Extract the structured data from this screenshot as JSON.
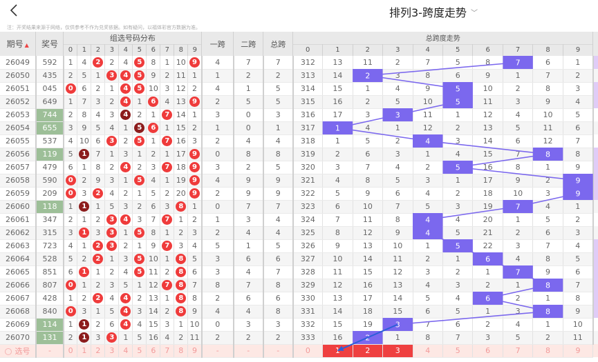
{
  "header": {
    "back_icon": "chevron-left-icon",
    "title": "排列3-跨度走势",
    "title_dropdown_icon": "chevron-down-icon",
    "note": "注：开奖结果来源于网络，仅供参考不作为兑奖依据。如有疑问，以福体彩官方数据为准。"
  },
  "columns": {
    "issue": "期号",
    "sort_icon": "sort-arrows-icon",
    "number": "奖号",
    "dist_group": "组选号码分布",
    "dist_digits": [
      "0",
      "1",
      "2",
      "3",
      "4",
      "5",
      "6",
      "7",
      "8",
      "9"
    ],
    "span1": "一跨",
    "span2": "二跨",
    "total_span": "总跨",
    "trend_group": "总跨度走势",
    "trend_digits": [
      "0",
      "1",
      "2",
      "3",
      "4",
      "5",
      "6",
      "7",
      "8",
      "9"
    ]
  },
  "colors": {
    "ball_red": "#ef3b3b",
    "ball_dark": "#8c1c1c",
    "green_cell": "#9dbf98",
    "trend_hit": "#7b68ee",
    "pick_selected": "#ef4040",
    "pick_row_bg": "#fde8e4",
    "side_strip": "#e0ccf7"
  },
  "rows": [
    {
      "issue": "26049",
      "num": "592",
      "green": false,
      "dist": [
        "1",
        "4",
        "2",
        "2",
        "4",
        "5",
        "8",
        "1",
        "10",
        "9"
      ],
      "balls": [
        2,
        5,
        9
      ],
      "dark": [],
      "s1": "4",
      "s2": "7",
      "st": "7",
      "miss0": "312",
      "trend": [
        "13",
        "11",
        "2",
        "7",
        "5",
        "8",
        "7",
        "6",
        "1"
      ],
      "hit": 7,
      "strip": true
    },
    {
      "issue": "26050",
      "num": "435",
      "green": false,
      "dist": [
        "2",
        "5",
        "1",
        "3",
        "4",
        "5",
        "9",
        "2",
        "11",
        "1"
      ],
      "balls": [
        3,
        4,
        5
      ],
      "dark": [],
      "s1": "1",
      "s2": "2",
      "st": "2",
      "miss0": "313",
      "trend": [
        "14",
        "2",
        "3",
        "8",
        "6",
        "9",
        "1",
        "7",
        "2"
      ],
      "hit": 2,
      "strip": false
    },
    {
      "issue": "26051",
      "num": "045",
      "green": false,
      "dist": [
        "0",
        "6",
        "2",
        "1",
        "4",
        "5",
        "10",
        "3",
        "12",
        "2"
      ],
      "balls": [
        0,
        4,
        5
      ],
      "dark": [],
      "s1": "4",
      "s2": "1",
      "st": "5",
      "miss0": "314",
      "trend": [
        "15",
        "1",
        "4",
        "9",
        "5",
        "10",
        "2",
        "8",
        "3"
      ],
      "hit": 5,
      "strip": true
    },
    {
      "issue": "26052",
      "num": "649",
      "green": false,
      "dist": [
        "1",
        "7",
        "3",
        "2",
        "4",
        "1",
        "6",
        "4",
        "13",
        "9"
      ],
      "balls": [
        4,
        6,
        9
      ],
      "dark": [],
      "s1": "2",
      "s2": "5",
      "st": "5",
      "miss0": "315",
      "trend": [
        "16",
        "2",
        "5",
        "10",
        "5",
        "11",
        "3",
        "9",
        "4"
      ],
      "hit": 5,
      "strip": true
    },
    {
      "issue": "26053",
      "num": "744",
      "green": true,
      "dist": [
        "2",
        "8",
        "4",
        "3",
        "4",
        "2",
        "1",
        "7",
        "14",
        "1"
      ],
      "balls": [
        4,
        7
      ],
      "dark": [
        4
      ],
      "s1": "3",
      "s2": "0",
      "st": "3",
      "miss0": "316",
      "trend": [
        "17",
        "3",
        "3",
        "11",
        "1",
        "12",
        "4",
        "10",
        "5"
      ],
      "hit": 3,
      "strip": false
    },
    {
      "issue": "26054",
      "num": "655",
      "green": true,
      "dist": [
        "3",
        "9",
        "5",
        "4",
        "1",
        "5",
        "6",
        "1",
        "15",
        "2"
      ],
      "balls": [
        5,
        6
      ],
      "dark": [
        5
      ],
      "s1": "1",
      "s2": "0",
      "st": "1",
      "miss0": "317",
      "trend": [
        "1",
        "4",
        "1",
        "12",
        "2",
        "13",
        "5",
        "11",
        "6"
      ],
      "hit": 1,
      "strip": false
    },
    {
      "issue": "26055",
      "num": "537",
      "green": false,
      "dist": [
        "4",
        "10",
        "6",
        "3",
        "2",
        "5",
        "1",
        "7",
        "16",
        "3"
      ],
      "balls": [
        3,
        5,
        7
      ],
      "dark": [],
      "s1": "2",
      "s2": "4",
      "st": "4",
      "miss0": "318",
      "trend": [
        "1",
        "5",
        "2",
        "4",
        "3",
        "14",
        "6",
        "12",
        "7"
      ],
      "hit": 4,
      "strip": false
    },
    {
      "issue": "26056",
      "num": "119",
      "green": true,
      "dist": [
        "5",
        "1",
        "7",
        "1",
        "3",
        "1",
        "2",
        "1",
        "17",
        "9"
      ],
      "balls": [
        1,
        9
      ],
      "dark": [
        1
      ],
      "s1": "0",
      "s2": "8",
      "st": "8",
      "miss0": "319",
      "trend": [
        "2",
        "6",
        "3",
        "1",
        "4",
        "15",
        "7",
        "8",
        "8"
      ],
      "hit": 8,
      "strip": true
    },
    {
      "issue": "26057",
      "num": "479",
      "green": false,
      "dist": [
        "6",
        "1",
        "8",
        "2",
        "4",
        "2",
        "3",
        "7",
        "18",
        "9"
      ],
      "balls": [
        4,
        7,
        9
      ],
      "dark": [],
      "s1": "3",
      "s2": "2",
      "st": "5",
      "miss0": "320",
      "trend": [
        "3",
        "7",
        "4",
        "2",
        "5",
        "16",
        "8",
        "1",
        "9"
      ],
      "hit": 5,
      "strip": true
    },
    {
      "issue": "26058",
      "num": "590",
      "green": false,
      "dist": [
        "0",
        "2",
        "9",
        "3",
        "1",
        "5",
        "4",
        "1",
        "19",
        "9"
      ],
      "balls": [
        0,
        5,
        9
      ],
      "dark": [],
      "s1": "4",
      "s2": "9",
      "st": "9",
      "miss0": "321",
      "trend": [
        "4",
        "8",
        "5",
        "3",
        "1",
        "17",
        "9",
        "2",
        "9"
      ],
      "hit": 9,
      "strip": true
    },
    {
      "issue": "26059",
      "num": "209",
      "green": false,
      "dist": [
        "0",
        "3",
        "2",
        "4",
        "2",
        "1",
        "5",
        "2",
        "20",
        "9"
      ],
      "balls": [
        0,
        2,
        9
      ],
      "dark": [],
      "s1": "2",
      "s2": "9",
      "st": "9",
      "miss0": "322",
      "trend": [
        "5",
        "9",
        "6",
        "4",
        "2",
        "18",
        "10",
        "3",
        "9"
      ],
      "hit": 9,
      "strip": true
    },
    {
      "issue": "26060",
      "num": "118",
      "green": true,
      "dist": [
        "1",
        "1",
        "1",
        "5",
        "3",
        "2",
        "6",
        "3",
        "8",
        "1"
      ],
      "balls": [
        1,
        8
      ],
      "dark": [
        1
      ],
      "s1": "0",
      "s2": "7",
      "st": "7",
      "miss0": "323",
      "trend": [
        "6",
        "10",
        "7",
        "5",
        "3",
        "19",
        "7",
        "4",
        "1"
      ],
      "hit": 7,
      "strip": false
    },
    {
      "issue": "26061",
      "num": "347",
      "green": false,
      "dist": [
        "2",
        "1",
        "2",
        "3",
        "4",
        "3",
        "7",
        "7",
        "1",
        "2"
      ],
      "balls": [
        3,
        4,
        7
      ],
      "dark": [],
      "s1": "1",
      "s2": "3",
      "st": "4",
      "miss0": "324",
      "trend": [
        "7",
        "11",
        "8",
        "4",
        "4",
        "20",
        "1",
        "5",
        "2"
      ],
      "hit": 4,
      "strip": false
    },
    {
      "issue": "26062",
      "num": "315",
      "green": false,
      "dist": [
        "3",
        "1",
        "3",
        "3",
        "1",
        "5",
        "8",
        "1",
        "2",
        "3"
      ],
      "balls": [
        1,
        3,
        5
      ],
      "dark": [],
      "s1": "2",
      "s2": "4",
      "st": "4",
      "miss0": "325",
      "trend": [
        "8",
        "12",
        "9",
        "4",
        "5",
        "21",
        "2",
        "6",
        "3"
      ],
      "hit": 4,
      "strip": false
    },
    {
      "issue": "26063",
      "num": "723",
      "green": false,
      "dist": [
        "4",
        "1",
        "2",
        "3",
        "2",
        "1",
        "9",
        "7",
        "3",
        "4"
      ],
      "balls": [
        2,
        3,
        7
      ],
      "dark": [],
      "s1": "5",
      "s2": "1",
      "st": "5",
      "miss0": "326",
      "trend": [
        "9",
        "13",
        "10",
        "1",
        "5",
        "22",
        "3",
        "7",
        "4"
      ],
      "hit": 5,
      "strip": true
    },
    {
      "issue": "26064",
      "num": "528",
      "green": false,
      "dist": [
        "5",
        "2",
        "2",
        "1",
        "3",
        "5",
        "10",
        "1",
        "8",
        "5"
      ],
      "balls": [
        2,
        5,
        8
      ],
      "dark": [],
      "s1": "3",
      "s2": "6",
      "st": "6",
      "miss0": "327",
      "trend": [
        "10",
        "14",
        "11",
        "2",
        "1",
        "6",
        "4",
        "8",
        "5"
      ],
      "hit": 6,
      "strip": true
    },
    {
      "issue": "26065",
      "num": "851",
      "green": false,
      "dist": [
        "6",
        "1",
        "1",
        "2",
        "4",
        "5",
        "11",
        "2",
        "8",
        "6"
      ],
      "balls": [
        1,
        5,
        8
      ],
      "dark": [],
      "s1": "3",
      "s2": "4",
      "st": "7",
      "miss0": "328",
      "trend": [
        "11",
        "15",
        "12",
        "3",
        "2",
        "1",
        "7",
        "9",
        "6"
      ],
      "hit": 7,
      "strip": true
    },
    {
      "issue": "26066",
      "num": "807",
      "green": false,
      "dist": [
        "0",
        "1",
        "2",
        "3",
        "5",
        "1",
        "12",
        "7",
        "8",
        "7"
      ],
      "balls": [
        0,
        7,
        8
      ],
      "dark": [],
      "s1": "8",
      "s2": "7",
      "st": "8",
      "miss0": "329",
      "trend": [
        "12",
        "16",
        "13",
        "4",
        "3",
        "2",
        "1",
        "8",
        "7"
      ],
      "hit": 8,
      "strip": true
    },
    {
      "issue": "26067",
      "num": "428",
      "green": false,
      "dist": [
        "1",
        "2",
        "2",
        "4",
        "4",
        "2",
        "13",
        "1",
        "8",
        "8"
      ],
      "balls": [
        2,
        4,
        8
      ],
      "dark": [],
      "s1": "2",
      "s2": "6",
      "st": "6",
      "miss0": "330",
      "trend": [
        "13",
        "17",
        "14",
        "5",
        "4",
        "6",
        "2",
        "1",
        "8"
      ],
      "hit": 6,
      "strip": true
    },
    {
      "issue": "26068",
      "num": "840",
      "green": false,
      "dist": [
        "0",
        "3",
        "1",
        "5",
        "4",
        "3",
        "14",
        "2",
        "8",
        "9"
      ],
      "balls": [
        0,
        4,
        8
      ],
      "dark": [],
      "s1": "4",
      "s2": "4",
      "st": "8",
      "miss0": "331",
      "trend": [
        "14",
        "18",
        "15",
        "6",
        "5",
        "1",
        "3",
        "8",
        "9"
      ],
      "hit": 8,
      "strip": true
    },
    {
      "issue": "26069",
      "num": "114",
      "green": true,
      "dist": [
        "1",
        "1",
        "2",
        "6",
        "4",
        "4",
        "15",
        "3",
        "1",
        "10"
      ],
      "balls": [
        1,
        4
      ],
      "dark": [
        1
      ],
      "s1": "0",
      "s2": "3",
      "st": "3",
      "miss0": "332",
      "trend": [
        "15",
        "19",
        "3",
        "7",
        "6",
        "2",
        "4",
        "1",
        "10"
      ],
      "hit": 3,
      "strip": false
    },
    {
      "issue": "26070",
      "num": "131",
      "green": true,
      "dist": [
        "2",
        "1",
        "3",
        "3",
        "1",
        "5",
        "16",
        "4",
        "2",
        "11"
      ],
      "balls": [
        1,
        3
      ],
      "dark": [
        1
      ],
      "s1": "2",
      "s2": "2",
      "st": "2",
      "miss0": "333",
      "trend": [
        "16",
        "2",
        "1",
        "8",
        "7",
        "3",
        "5",
        "2",
        "11"
      ],
      "hit": 2,
      "strip": false
    }
  ],
  "pick_row": {
    "radio_icon": "radio-circle-icon",
    "label": "选号",
    "num": "-",
    "dist": [
      "0",
      "1",
      "2",
      "3",
      "4",
      "5",
      "6",
      "7",
      "8",
      "9"
    ],
    "s1": "-",
    "s2": "-",
    "st": "-",
    "trend": [
      "0",
      "1",
      "2",
      "3",
      "4",
      "5",
      "6",
      "7",
      "8",
      "9"
    ],
    "selected": [
      1,
      2,
      3
    ]
  },
  "annotation": {
    "arrow_icon": "blue-arrow-annotation",
    "color": "#2b5fd9"
  }
}
